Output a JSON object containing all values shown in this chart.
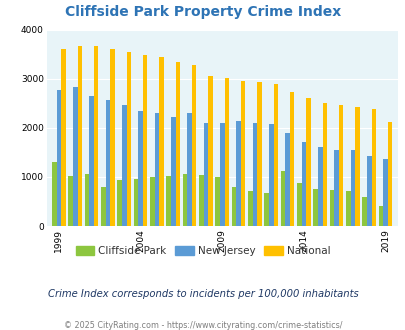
{
  "title": "Cliffside Park Property Crime Index",
  "subtitle": "Crime Index corresponds to incidents per 100,000 inhabitants",
  "footer": "© 2025 CityRating.com - https://www.cityrating.com/crime-statistics/",
  "years": [
    1999,
    2000,
    2001,
    2002,
    2003,
    2004,
    2005,
    2006,
    2007,
    2008,
    2009,
    2010,
    2011,
    2012,
    2013,
    2014,
    2015,
    2016,
    2017,
    2018,
    2019
  ],
  "cliffside_park": [
    1300,
    1020,
    1070,
    800,
    930,
    960,
    990,
    1020,
    1060,
    1040,
    990,
    800,
    720,
    670,
    1120,
    880,
    760,
    730,
    720,
    600,
    400
  ],
  "new_jersey": [
    2780,
    2840,
    2650,
    2560,
    2460,
    2350,
    2310,
    2220,
    2310,
    2090,
    2090,
    2150,
    2100,
    2080,
    1890,
    1720,
    1620,
    1550,
    1540,
    1430,
    1360
  ],
  "national": [
    3610,
    3660,
    3670,
    3610,
    3550,
    3490,
    3440,
    3340,
    3290,
    3050,
    3020,
    2960,
    2940,
    2890,
    2740,
    2600,
    2500,
    2460,
    2420,
    2390,
    2110
  ],
  "ylim": [
    0,
    4000
  ],
  "yticks": [
    0,
    1000,
    2000,
    3000,
    4000
  ],
  "xtick_labels": [
    "1999",
    "2004",
    "2009",
    "2014",
    "2019"
  ],
  "xtick_positions": [
    0,
    5,
    10,
    15,
    20
  ],
  "bar_width": 0.28,
  "colors": {
    "cliffside_park": "#8dc63f",
    "new_jersey": "#5b9bd5",
    "national": "#ffc000"
  },
  "bg_color": "#e8f4f8",
  "title_color": "#2e74b5",
  "subtitle_color": "#1f3864",
  "footer_color": "#7f7f7f",
  "legend_labels": [
    "Cliffside Park",
    "New Jersey",
    "National"
  ],
  "legend_colors": [
    "#8dc63f",
    "#5b9bd5",
    "#ffc000"
  ]
}
